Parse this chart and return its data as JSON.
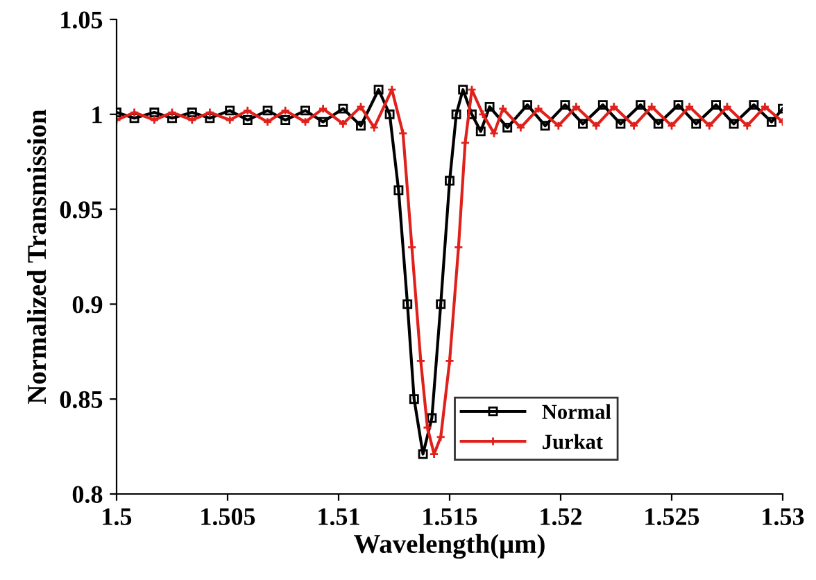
{
  "chart_data": {
    "type": "line",
    "xlabel": "Wavelength(μm)",
    "ylabel": "Normalized Transmission",
    "xlim": [
      1.5,
      1.53
    ],
    "ylim": [
      0.8,
      1.05
    ],
    "xticks": [
      1.5,
      1.505,
      1.51,
      1.515,
      1.52,
      1.525,
      1.53
    ],
    "yticks": [
      0.8,
      0.85,
      0.9,
      0.95,
      1,
      1.05
    ],
    "legend": "bottom",
    "grid": false,
    "line_style": "solid",
    "series": [
      {
        "name": "Normal",
        "color": "#000000",
        "marker": "square",
        "x": [
          1.5,
          1.5008,
          1.5017,
          1.5025,
          1.5034,
          1.5042,
          1.5051,
          1.5059,
          1.5068,
          1.5076,
          1.5085,
          1.5093,
          1.5102,
          1.511,
          1.5118,
          1.5123,
          1.5127,
          1.5131,
          1.5134,
          1.5138,
          1.5142,
          1.5146,
          1.515,
          1.5153,
          1.5156,
          1.516,
          1.5164,
          1.5168,
          1.5176,
          1.5185,
          1.5193,
          1.5202,
          1.521,
          1.5219,
          1.5227,
          1.5236,
          1.5244,
          1.5253,
          1.5261,
          1.527,
          1.5278,
          1.5287,
          1.5295,
          1.53
        ],
        "values": [
          1.001,
          0.998,
          1.001,
          0.998,
          1.001,
          0.998,
          1.002,
          0.997,
          1.002,
          0.997,
          1.002,
          0.996,
          1.003,
          0.994,
          1.013,
          1.0,
          0.96,
          0.9,
          0.85,
          0.821,
          0.84,
          0.9,
          0.965,
          1.0,
          1.013,
          1.0,
          0.991,
          1.004,
          0.993,
          1.005,
          0.994,
          1.005,
          0.995,
          1.005,
          0.995,
          1.005,
          0.995,
          1.005,
          0.995,
          1.005,
          0.995,
          1.005,
          0.996,
          1.003
        ]
      },
      {
        "name": "Jurkat",
        "color": "#e0201b",
        "marker": "cross",
        "x": [
          1.5,
          1.5008,
          1.5017,
          1.5025,
          1.5034,
          1.5042,
          1.5051,
          1.5059,
          1.5068,
          1.5076,
          1.5085,
          1.5093,
          1.5102,
          1.511,
          1.5116,
          1.5124,
          1.5129,
          1.5133,
          1.5137,
          1.514,
          1.5143,
          1.5146,
          1.515,
          1.5154,
          1.5157,
          1.516,
          1.5165,
          1.517,
          1.5174,
          1.5182,
          1.519,
          1.5199,
          1.5207,
          1.5216,
          1.5224,
          1.5233,
          1.5241,
          1.525,
          1.5258,
          1.5267,
          1.5275,
          1.5284,
          1.5292,
          1.53
        ],
        "values": [
          0.997,
          1.001,
          0.997,
          1.001,
          0.997,
          1.001,
          0.997,
          1.002,
          0.996,
          1.002,
          0.996,
          1.003,
          0.995,
          1.004,
          0.993,
          1.013,
          0.99,
          0.93,
          0.87,
          0.835,
          0.821,
          0.83,
          0.87,
          0.93,
          0.985,
          1.013,
          1.0,
          0.99,
          1.003,
          0.993,
          1.003,
          0.994,
          1.004,
          0.994,
          1.004,
          0.994,
          1.004,
          0.994,
          1.004,
          0.994,
          1.004,
          0.994,
          1.004,
          0.996
        ]
      }
    ]
  }
}
